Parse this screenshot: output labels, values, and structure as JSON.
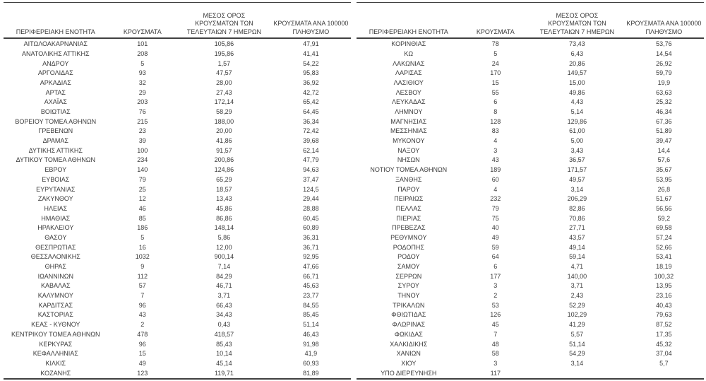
{
  "page": {
    "background_color": "#ffffff",
    "text_color": "#3a3a3a",
    "rule_color": "#404040"
  },
  "table": {
    "headers": {
      "region": "ΠΕΡΙΦΕΡΕΙΑΚΗ ΕΝΟΤΗΤΑ",
      "cases": "ΚΡΟΥΣΜΑΤΑ",
      "avg7": "ΜΕΣΟΣ ΟΡΟΣ\nΚΡΟΥΣΜΑΤΩΝ ΤΩΝ\nΤΕΛΕΥΤΑΙΩΝ 7 ΗΜΕΡΩΝ",
      "per100k": "ΚΡΟΥΣΜΑΤΑ ΑΝΑ 100000\nΠΛΗΘΥΣΜΟ"
    },
    "left_rows": [
      [
        "ΑΙΤΩΛΟΑΚΑΡΝΑΝΙΑΣ",
        "101",
        "105,86",
        "47,91"
      ],
      [
        "ΑΝΑΤΟΛΙΚΗΣ ΑΤΤΙΚΗΣ",
        "208",
        "195,86",
        "41,41"
      ],
      [
        "ΑΝΔΡΟΥ",
        "5",
        "1,57",
        "54,22"
      ],
      [
        "ΑΡΓΟΛΙΔΑΣ",
        "93",
        "47,57",
        "95,83"
      ],
      [
        "ΑΡΚΑΔΙΑΣ",
        "32",
        "28,00",
        "36,92"
      ],
      [
        "ΑΡΤΑΣ",
        "29",
        "27,43",
        "42,72"
      ],
      [
        "ΑΧΑΪΑΣ",
        "203",
        "172,14",
        "65,42"
      ],
      [
        "ΒΟΙΩΤΙΑΣ",
        "76",
        "58,29",
        "64,45"
      ],
      [
        "ΒΟΡΕΙΟΥ ΤΟΜΕΑ ΑΘΗΝΩΝ",
        "215",
        "188,00",
        "36,34"
      ],
      [
        "ΓΡΕΒΕΝΩΝ",
        "23",
        "20,00",
        "72,42"
      ],
      [
        "ΔΡΑΜΑΣ",
        "39",
        "41,86",
        "39,68"
      ],
      [
        "ΔΥΤΙΚΗΣ ΑΤΤΙΚΗΣ",
        "100",
        "91,57",
        "62,14"
      ],
      [
        "ΔΥΤΙΚΟΥ ΤΟΜΕΑ ΑΘΗΝΩΝ",
        "234",
        "200,86",
        "47,79"
      ],
      [
        "ΕΒΡΟΥ",
        "140",
        "124,86",
        "94,63"
      ],
      [
        "ΕΥΒΟΙΑΣ",
        "79",
        "65,29",
        "37,47"
      ],
      [
        "ΕΥΡΥΤΑΝΙΑΣ",
        "25",
        "18,57",
        "124,5"
      ],
      [
        "ΖΑΚΥΝΘΟΥ",
        "12",
        "13,43",
        "29,44"
      ],
      [
        "ΗΛΕΙΑΣ",
        "46",
        "45,86",
        "28,88"
      ],
      [
        "ΗΜΑΘΙΑΣ",
        "85",
        "86,86",
        "60,45"
      ],
      [
        "ΗΡΑΚΛΕΙΟΥ",
        "186",
        "148,14",
        "60,89"
      ],
      [
        "ΘΑΣΟΥ",
        "5",
        "5,86",
        "36,31"
      ],
      [
        "ΘΕΣΠΡΩΤΙΑΣ",
        "16",
        "12,00",
        "36,71"
      ],
      [
        "ΘΕΣΣΑΛΟΝΙΚΗΣ",
        "1032",
        "900,14",
        "92,95"
      ],
      [
        "ΘΗΡΑΣ",
        "9",
        "7,14",
        "47,66"
      ],
      [
        "ΙΩΑΝΝΙΝΩΝ",
        "112",
        "84,29",
        "66,71"
      ],
      [
        "ΚΑΒΑΛΑΣ",
        "57",
        "46,71",
        "45,63"
      ],
      [
        "ΚΑΛΥΜΝΟΥ",
        "7",
        "3,71",
        "23,77"
      ],
      [
        "ΚΑΡΔΙΤΣΑΣ",
        "96",
        "66,43",
        "84,55"
      ],
      [
        "ΚΑΣΤΟΡΙΑΣ",
        "43",
        "34,43",
        "85,45"
      ],
      [
        "ΚΕΑΣ - ΚΥΘΝΟΥ",
        "2",
        "0,43",
        "51,14"
      ],
      [
        "ΚΕΝΤΡΙΚΟΥ ΤΟΜΕΑ ΑΘΗΝΩΝ",
        "478",
        "418,57",
        "46,43"
      ],
      [
        "ΚΕΡΚΥΡΑΣ",
        "96",
        "85,43",
        "91,98"
      ],
      [
        "ΚΕΦΑΛΛΗΝΙΑΣ",
        "15",
        "10,14",
        "41,9"
      ],
      [
        "ΚΙΛΚΙΣ",
        "49",
        "45,14",
        "60,93"
      ],
      [
        "ΚΟΖΑΝΗΣ",
        "123",
        "119,71",
        "81,89"
      ]
    ],
    "right_rows": [
      [
        "ΚΟΡΙΝΘΙΑΣ",
        "78",
        "73,43",
        "53,76"
      ],
      [
        "ΚΩ",
        "5",
        "6,43",
        "14,54"
      ],
      [
        "ΛΑΚΩΝΙΑΣ",
        "24",
        "20,86",
        "26,92"
      ],
      [
        "ΛΑΡΙΣΑΣ",
        "170",
        "149,57",
        "59,79"
      ],
      [
        "ΛΑΣΙΘΙΟΥ",
        "15",
        "15,00",
        "19,9"
      ],
      [
        "ΛΕΣΒΟΥ",
        "55",
        "49,86",
        "63,63"
      ],
      [
        "ΛΕΥΚΑΔΑΣ",
        "6",
        "4,43",
        "25,32"
      ],
      [
        "ΛΗΜΝΟΥ",
        "8",
        "5,14",
        "46,34"
      ],
      [
        "ΜΑΓΝΗΣΙΑΣ",
        "128",
        "129,86",
        "67,36"
      ],
      [
        "ΜΕΣΣΗΝΙΑΣ",
        "83",
        "61,00",
        "51,89"
      ],
      [
        "ΜΥΚΟΝΟΥ",
        "4",
        "5,00",
        "39,47"
      ],
      [
        "ΝΑΞΟΥ",
        "3",
        "3,43",
        "14,4"
      ],
      [
        "ΝΗΣΩΝ",
        "43",
        "36,57",
        "57,6"
      ],
      [
        "ΝΟΤΙΟΥ ΤΟΜΕΑ ΑΘΗΝΩΝ",
        "189",
        "171,57",
        "35,67"
      ],
      [
        "ΞΑΝΘΗΣ",
        "60",
        "49,57",
        "53,95"
      ],
      [
        "ΠΑΡΟΥ",
        "4",
        "3,14",
        "26,8"
      ],
      [
        "ΠΕΙΡΑΙΩΣ",
        "232",
        "206,29",
        "51,67"
      ],
      [
        "ΠΕΛΛΑΣ",
        "79",
        "82,86",
        "56,56"
      ],
      [
        "ΠΙΕΡΙΑΣ",
        "75",
        "70,86",
        "59,2"
      ],
      [
        "ΠΡΕΒΕΖΑΣ",
        "40",
        "27,71",
        "69,58"
      ],
      [
        "ΡΕΘΥΜΝΟΥ",
        "49",
        "43,57",
        "57,24"
      ],
      [
        "ΡΟΔΟΠΗΣ",
        "59",
        "49,14",
        "52,66"
      ],
      [
        "ΡΟΔΟΥ",
        "64",
        "59,14",
        "53,41"
      ],
      [
        "ΣΑΜΟΥ",
        "6",
        "4,71",
        "18,19"
      ],
      [
        "ΣΕΡΡΩΝ",
        "177",
        "140,00",
        "100,32"
      ],
      [
        "ΣΥΡΟΥ",
        "3",
        "3,71",
        "13,95"
      ],
      [
        "ΤΗΝΟΥ",
        "2",
        "2,43",
        "23,16"
      ],
      [
        "ΤΡΙΚΑΛΩΝ",
        "53",
        "52,29",
        "40,43"
      ],
      [
        "ΦΘΙΩΤΙΔΑΣ",
        "126",
        "102,29",
        "79,63"
      ],
      [
        "ΦΛΩΡΙΝΑΣ",
        "45",
        "41,29",
        "87,52"
      ],
      [
        "ΦΩΚΙΔΑΣ",
        "7",
        "5,57",
        "17,35"
      ],
      [
        "ΧΑΛΚΙΔΙΚΗΣ",
        "48",
        "51,14",
        "45,32"
      ],
      [
        "ΧΑΝΙΩΝ",
        "58",
        "54,29",
        "37,04"
      ],
      [
        "ΧΙΟΥ",
        "3",
        "3,14",
        "5,7"
      ],
      [
        "ΥΠΟ ΔΙΕΡΕΥΝΗΣΗ",
        "117",
        "",
        ""
      ]
    ]
  }
}
